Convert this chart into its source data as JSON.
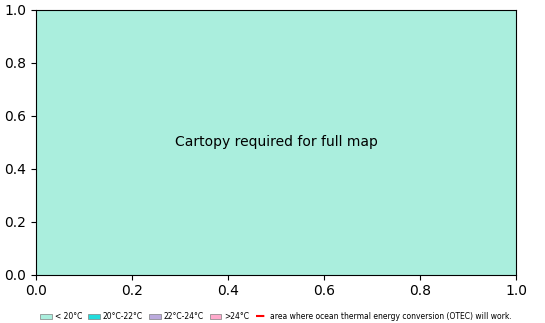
{
  "title": "",
  "legend_items": [
    {
      "label": "< 20°C",
      "color": "#aaeedd"
    },
    {
      "label": "20°C-22°C",
      "color": "#22dddd"
    },
    {
      "label": "22°C-24°C",
      "color": "#bbaadd"
    },
    {
      "label": ">24°C",
      "color": "#ffaacc"
    },
    {
      "label": "area where ocean thermal energy conversion (OTEC) will work.",
      "color": "red",
      "style": "dashed"
    }
  ],
  "bg_color": "#aaeedd",
  "ocean_light": "#aaeedd",
  "ocean_mid1": "#22dddd",
  "ocean_mid2": "#bbaadd",
  "ocean_warm": "#ffaacc",
  "land_color": "#ffffff",
  "border_color": "#333333",
  "grid_color": "#888888",
  "otec_color": "red",
  "map_edge_color": "#666666",
  "fig_bg": "#ffffff"
}
